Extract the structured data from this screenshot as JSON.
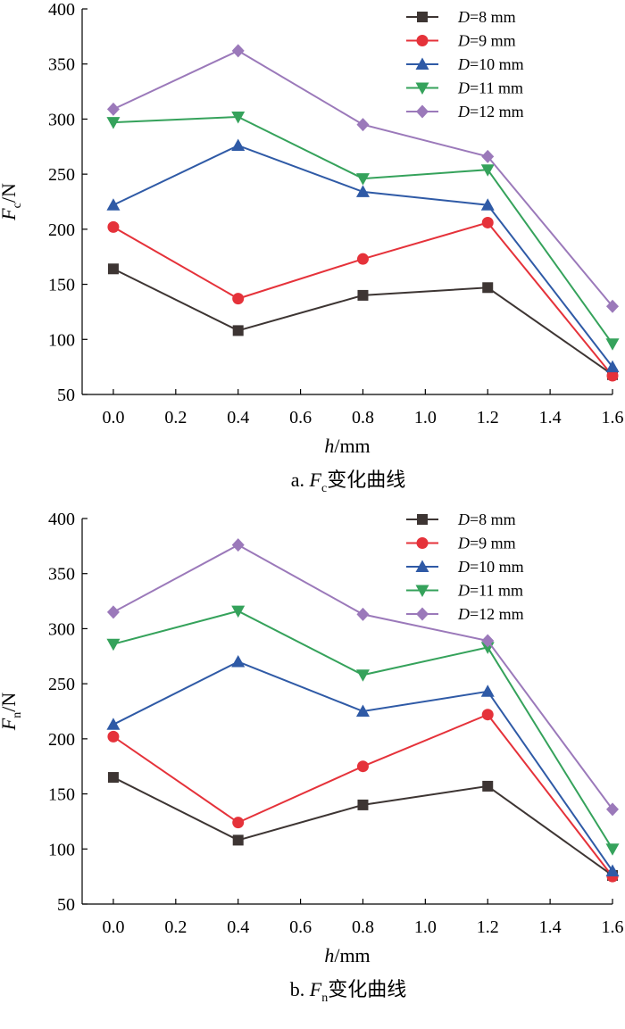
{
  "legend_label_format": "=... mm",
  "colors": {
    "D8": "#3d3533",
    "D9": "#e5323a",
    "D10": "#2f5aa6",
    "D11": "#35a25b",
    "D12": "#9b79ba"
  },
  "chart_data": [
    {
      "id": "fc",
      "type": "line",
      "title": "a. Fc变化曲线",
      "caption_prefix": "a. ",
      "caption_symbol": "F",
      "caption_subscript": "c",
      "caption_suffix": "变化曲线",
      "xlabel": "h/mm",
      "xlabel_symbol": "h",
      "xlabel_unit": "/mm",
      "ylabel": "Fc/N",
      "ylabel_symbol": "F",
      "ylabel_subscript": "c",
      "ylabel_unit": "/N",
      "x": [
        0.0,
        0.4,
        0.8,
        1.2,
        1.6
      ],
      "xlim": [
        -0.1,
        1.6
      ],
      "ylim": [
        50,
        400
      ],
      "xticks": [
        0.0,
        0.2,
        0.4,
        0.6,
        0.8,
        1.0,
        1.2,
        1.4,
        1.6
      ],
      "xtick_labels": [
        "0.0",
        "0.2",
        "0.4",
        "0.6",
        "0.8",
        "1.0",
        "1.2",
        "1.4",
        "1.6"
      ],
      "yticks": [
        50,
        100,
        150,
        200,
        250,
        300,
        350,
        400
      ],
      "ytick_labels": [
        "50",
        "100",
        "150",
        "200",
        "250",
        "300",
        "350",
        "400"
      ],
      "legend_position": "top-right",
      "grid": false,
      "series": [
        {
          "key": "D8",
          "symbol": "D",
          "value_text": "8 mm",
          "name": "D=8 mm",
          "marker": "square",
          "values": [
            164,
            108,
            140,
            147,
            68
          ]
        },
        {
          "key": "D9",
          "symbol": "D",
          "value_text": "9 mm",
          "name": "D=9 mm",
          "marker": "circle",
          "values": [
            202,
            137,
            173,
            206,
            67
          ]
        },
        {
          "key": "D10",
          "symbol": "D",
          "value_text": "10 mm",
          "name": "D=10 mm",
          "marker": "triangle-up",
          "values": [
            222,
            276,
            234,
            222,
            75
          ]
        },
        {
          "key": "D11",
          "symbol": "D",
          "value_text": "11 mm",
          "name": "D=11 mm",
          "marker": "triangle-down",
          "values": [
            297,
            302,
            246,
            254,
            96
          ]
        },
        {
          "key": "D12",
          "symbol": "D",
          "value_text": "12 mm",
          "name": "D=12 mm",
          "marker": "diamond",
          "values": [
            309,
            362,
            295,
            266,
            130
          ]
        }
      ]
    },
    {
      "id": "fn",
      "type": "line",
      "title": "b. Fn变化曲线",
      "caption_prefix": "b. ",
      "caption_symbol": "F",
      "caption_subscript": "n",
      "caption_suffix": "变化曲线",
      "xlabel": "h/mm",
      "xlabel_symbol": "h",
      "xlabel_unit": "/mm",
      "ylabel": "Fn/N",
      "ylabel_symbol": "F",
      "ylabel_subscript": "n",
      "ylabel_unit": "/N",
      "x": [
        0.0,
        0.4,
        0.8,
        1.2,
        1.6
      ],
      "xlim": [
        -0.1,
        1.6
      ],
      "ylim": [
        50,
        400
      ],
      "xticks": [
        0.0,
        0.2,
        0.4,
        0.6,
        0.8,
        1.0,
        1.2,
        1.4,
        1.6
      ],
      "xtick_labels": [
        "0.0",
        "0.2",
        "0.4",
        "0.6",
        "0.8",
        "1.0",
        "1.2",
        "1.4",
        "1.6"
      ],
      "yticks": [
        50,
        100,
        150,
        200,
        250,
        300,
        350,
        400
      ],
      "ytick_labels": [
        "50",
        "100",
        "150",
        "200",
        "250",
        "300",
        "350",
        "400"
      ],
      "legend_position": "top-right",
      "grid": false,
      "series": [
        {
          "key": "D8",
          "symbol": "D",
          "value_text": "8 mm",
          "name": "D=8 mm",
          "marker": "square",
          "values": [
            165,
            108,
            140,
            157,
            76
          ]
        },
        {
          "key": "D9",
          "symbol": "D",
          "value_text": "9 mm",
          "name": "D=9 mm",
          "marker": "circle",
          "values": [
            202,
            124,
            175,
            222,
            75
          ]
        },
        {
          "key": "D10",
          "symbol": "D",
          "value_text": "10 mm",
          "name": "D=10 mm",
          "marker": "triangle-up",
          "values": [
            213,
            270,
            225,
            243,
            80
          ]
        },
        {
          "key": "D11",
          "symbol": "D",
          "value_text": "11 mm",
          "name": "D=11 mm",
          "marker": "triangle-down",
          "values": [
            286,
            316,
            258,
            283,
            100
          ]
        },
        {
          "key": "D12",
          "symbol": "D",
          "value_text": "12 mm",
          "name": "D=12 mm",
          "marker": "diamond",
          "values": [
            315,
            376,
            313,
            289,
            136
          ]
        }
      ]
    }
  ]
}
